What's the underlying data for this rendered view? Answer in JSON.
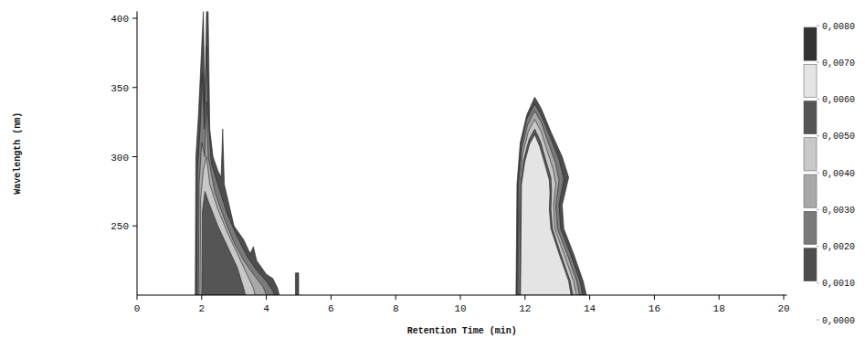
{
  "chart_data": {
    "type": "contour",
    "x_label": "Retention Time (min)",
    "y_label": "Wavelength (nm)",
    "xlim": [
      0,
      20.1
    ],
    "ylim": [
      200,
      405
    ],
    "xticks": [
      0,
      2,
      4,
      6,
      8,
      10,
      12,
      14,
      16,
      18,
      20
    ],
    "yticks": [
      250,
      300,
      350,
      400
    ],
    "contours": [
      {
        "level": 0.001,
        "x": [
          1.8,
          1.82,
          1.9,
          2.0,
          2.05,
          2.1,
          2.15,
          2.2,
          2.25,
          2.35,
          2.5,
          2.6,
          2.65,
          2.7,
          2.85,
          3.0,
          3.3,
          3.5,
          3.6,
          3.7,
          4.0,
          4.2,
          4.35,
          4.4
        ],
        "y": [
          200,
          300,
          330,
          380,
          405,
          340,
          405,
          405,
          320,
          300,
          290,
          285,
          320,
          280,
          265,
          250,
          240,
          230,
          235,
          225,
          215,
          212,
          205,
          200
        ]
      },
      {
        "level": 0.002,
        "x": [
          1.85,
          1.87,
          1.95,
          2.02,
          2.08,
          2.15,
          2.2,
          2.3,
          2.5,
          2.8,
          3.1,
          3.4,
          3.7,
          4.0,
          4.2,
          4.25
        ],
        "y": [
          200,
          290,
          320,
          360,
          320,
          380,
          330,
          295,
          280,
          258,
          242,
          228,
          218,
          210,
          203,
          200
        ]
      },
      {
        "level": 0.003,
        "x": [
          1.9,
          1.92,
          2.0,
          2.1,
          2.15,
          2.2,
          2.4,
          2.7,
          3.0,
          3.3,
          3.6,
          3.9,
          4.0
        ],
        "y": [
          200,
          280,
          310,
          300,
          340,
          300,
          275,
          255,
          238,
          225,
          215,
          206,
          200
        ]
      },
      {
        "level": 0.004,
        "x": [
          1.95,
          1.97,
          2.05,
          2.15,
          2.25,
          2.5,
          2.8,
          3.1,
          3.4,
          3.6,
          3.65
        ],
        "y": [
          200,
          270,
          290,
          300,
          280,
          262,
          245,
          230,
          215,
          205,
          200
        ]
      },
      {
        "level": 0.005,
        "x": [
          2.0,
          2.02,
          2.1,
          2.2,
          2.5,
          2.8,
          3.1,
          3.3,
          3.35
        ],
        "y": [
          200,
          260,
          275,
          268,
          250,
          235,
          220,
          205,
          200
        ]
      },
      {
        "level": 0.001,
        "x": [
          4.9,
          4.9,
          5.0,
          5.0
        ],
        "y": [
          200,
          216,
          216,
          200
        ]
      },
      {
        "level": 0.001,
        "x": [
          11.72,
          11.75,
          11.85,
          12.05,
          12.3,
          12.5,
          12.8,
          13.15,
          13.35,
          13.15,
          13.2,
          13.5,
          13.8,
          13.9
        ],
        "y": [
          200,
          280,
          310,
          330,
          343,
          335,
          318,
          300,
          285,
          265,
          248,
          230,
          210,
          200
        ]
      },
      {
        "level": 0.002,
        "x": [
          11.75,
          11.78,
          11.88,
          12.05,
          12.3,
          12.5,
          12.8,
          13.05,
          13.2,
          13.05,
          13.1,
          13.4,
          13.7,
          13.78
        ],
        "y": [
          200,
          280,
          308,
          327,
          338,
          330,
          313,
          298,
          284,
          265,
          248,
          230,
          210,
          200
        ]
      },
      {
        "level": 0.003,
        "x": [
          11.78,
          11.8,
          11.9,
          12.08,
          12.3,
          12.5,
          12.75,
          12.95,
          13.05,
          12.95,
          13.0,
          13.3,
          13.6,
          13.68
        ],
        "y": [
          200,
          280,
          305,
          323,
          333,
          325,
          308,
          295,
          283,
          265,
          248,
          230,
          210,
          200
        ]
      },
      {
        "level": 0.004,
        "x": [
          11.8,
          11.83,
          11.93,
          12.1,
          12.3,
          12.5,
          12.7,
          12.88,
          12.95,
          12.88,
          12.92,
          13.2,
          13.5,
          13.58
        ],
        "y": [
          200,
          280,
          302,
          318,
          327,
          318,
          303,
          290,
          280,
          265,
          248,
          230,
          210,
          200
        ]
      },
      {
        "level": 0.005,
        "x": [
          11.83,
          11.86,
          11.96,
          12.12,
          12.3,
          12.48,
          12.65,
          12.8,
          12.82,
          12.8,
          12.85,
          13.1,
          13.4,
          13.48
        ],
        "y": [
          200,
          280,
          298,
          312,
          320,
          311,
          297,
          285,
          275,
          262,
          248,
          230,
          210,
          200
        ]
      },
      {
        "level": 0.006,
        "x": [
          11.86,
          11.89,
          11.99,
          12.14,
          12.3,
          12.46,
          12.62,
          12.75,
          12.77,
          12.75,
          12.8,
          13.05,
          13.35,
          13.42
        ],
        "y": [
          200,
          280,
          296,
          309,
          316,
          307,
          294,
          283,
          274,
          262,
          248,
          230,
          210,
          200
        ]
      }
    ],
    "colorbar": {
      "range": [
        0,
        0.008
      ],
      "ticks": [
        {
          "value": 0,
          "label": "0,0000"
        },
        {
          "value": 0.001,
          "label": "0,0010"
        },
        {
          "value": 0.002,
          "label": "0,0020"
        },
        {
          "value": 0.003,
          "label": "0,0030"
        },
        {
          "value": 0.004,
          "label": "0,0040"
        },
        {
          "value": 0.005,
          "label": "0,0050"
        },
        {
          "value": 0.006,
          "label": "0,0060"
        },
        {
          "value": 0.007,
          "label": "0,0070"
        },
        {
          "value": 0.008,
          "label": "0,0080"
        }
      ],
      "colors": [
        "#ffffff",
        "#4d4d4d",
        "#7a7a7a",
        "#a8a8a8",
        "#c8c8c8",
        "#555555",
        "#e4e4e4",
        "#333333"
      ]
    }
  }
}
